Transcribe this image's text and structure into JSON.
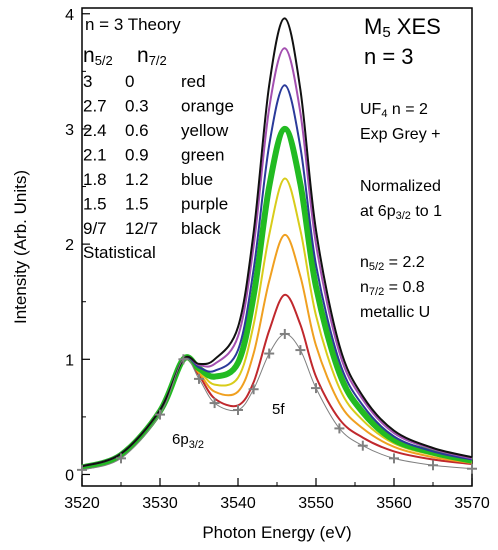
{
  "chart_data": {
    "type": "line",
    "xlabel": "Photon Energy (eV)",
    "ylabel": "Intensity (Arb. Units)",
    "xlim": [
      3520,
      3570
    ],
    "ylim": [
      -0.1,
      4.05
    ],
    "x_ticks": [
      "3520",
      "3530",
      "3540",
      "3550",
      "3560",
      "3570"
    ],
    "y_ticks": [
      "0",
      "1",
      "2",
      "3",
      "4"
    ],
    "grid": false,
    "x": [
      3520,
      3525,
      3530,
      3533,
      3535,
      3537,
      3540,
      3542,
      3544,
      3546,
      3548,
      3550,
      3553,
      3556,
      3560,
      3565,
      3570
    ],
    "series": [
      {
        "name": "red",
        "color": "#c0282d",
        "values": [
          0.06,
          0.17,
          0.55,
          1.0,
          0.86,
          0.66,
          0.6,
          0.8,
          1.25,
          1.56,
          1.3,
          0.85,
          0.48,
          0.32,
          0.2,
          0.13,
          0.09
        ]
      },
      {
        "name": "orange",
        "color": "#f0a020",
        "values": [
          0.06,
          0.17,
          0.55,
          1.0,
          0.88,
          0.72,
          0.72,
          1.05,
          1.68,
          2.08,
          1.72,
          1.12,
          0.62,
          0.4,
          0.24,
          0.15,
          0.1
        ]
      },
      {
        "name": "yellow",
        "color": "#d8cc1a",
        "values": [
          0.06,
          0.17,
          0.55,
          1.0,
          0.9,
          0.78,
          0.84,
          1.3,
          2.08,
          2.57,
          2.12,
          1.38,
          0.75,
          0.47,
          0.27,
          0.17,
          0.11
        ]
      },
      {
        "name": "green",
        "color": "#22bb22",
        "values": [
          0.06,
          0.17,
          0.55,
          1.0,
          0.92,
          0.85,
          0.97,
          1.55,
          2.5,
          3.0,
          2.52,
          1.63,
          0.88,
          0.54,
          0.3,
          0.19,
          0.12
        ]
      },
      {
        "name": "blue",
        "color": "#2a3a9a",
        "values": [
          0.07,
          0.18,
          0.56,
          1.0,
          0.93,
          0.9,
          1.08,
          1.78,
          2.86,
          3.38,
          2.84,
          1.82,
          0.98,
          0.6,
          0.33,
          0.2,
          0.13
        ]
      },
      {
        "name": "purple",
        "color": "#a34fb0",
        "values": [
          0.07,
          0.18,
          0.56,
          1.0,
          0.95,
          0.96,
          1.2,
          1.98,
          3.18,
          3.7,
          3.14,
          2.0,
          1.06,
          0.65,
          0.36,
          0.22,
          0.14
        ]
      },
      {
        "name": "black",
        "color": "#111111",
        "values": [
          0.07,
          0.18,
          0.56,
          1.0,
          0.96,
          1.0,
          1.28,
          2.1,
          3.38,
          3.96,
          3.34,
          2.12,
          1.12,
          0.68,
          0.38,
          0.23,
          0.15
        ]
      },
      {
        "name": "Exp Grey +",
        "color": "#808080",
        "values": [
          0.04,
          0.14,
          0.52,
          1.0,
          0.83,
          0.62,
          0.56,
          0.74,
          1.05,
          1.22,
          1.08,
          0.75,
          0.4,
          0.25,
          0.14,
          0.08,
          0.05
        ]
      }
    ],
    "annotations": {
      "peak_low": "6p3/2",
      "peak_high": "5f"
    },
    "legend_left": {
      "heading": "n = 3 Theory",
      "col1_head": "n5/2",
      "col2_head": "n7/2",
      "rows": [
        {
          "a": "3",
          "b": "0",
          "c": "red"
        },
        {
          "a": "2.7",
          "b": "0.3",
          "c": "orange"
        },
        {
          "a": "2.4",
          "b": "0.6",
          "c": "yellow"
        },
        {
          "a": "2.1",
          "b": "0.9",
          "c": "green"
        },
        {
          "a": "1.8",
          "b": "1.2",
          "c": "blue"
        },
        {
          "a": "1.5",
          "b": "1.5",
          "c": "purple"
        },
        {
          "a": "9/7",
          "b": "12/7",
          "c": "black"
        }
      ],
      "footer": "Statistical"
    },
    "legend_right": {
      "title1": "M5 XES",
      "title2": "n = 3",
      "lines1": [
        "UF4 n = 2",
        "Exp Grey +"
      ],
      "lines2": [
        "Normalized",
        "at 6p3/2 to 1"
      ],
      "lines3": [
        "n5/2 = 2.2",
        "n7/2 = 0.8",
        "metallic U"
      ]
    }
  }
}
